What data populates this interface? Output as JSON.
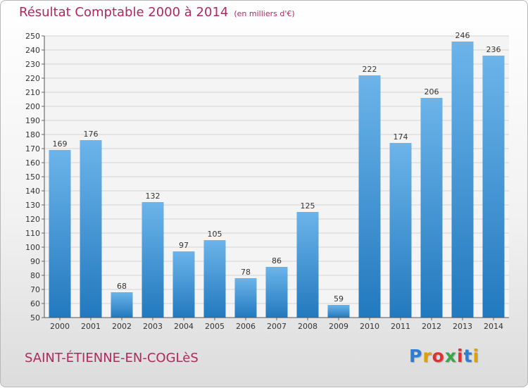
{
  "title": "Résultat Comptable 2000 à 2014",
  "unit_note": "(en milliers d'€)",
  "place": "SAINT-ÉTIENNE-EN-COGLèS",
  "logo": {
    "letters": [
      "P",
      "r",
      "o",
      "x",
      "i",
      "t",
      "i"
    ],
    "colors": [
      "#2a7fd4",
      "#e0a000",
      "#e03030",
      "#3aa64a",
      "#e03030",
      "#2a7fd4",
      "#e0a000"
    ]
  },
  "colors": {
    "bar_light": "#6cb4ea",
    "bar_dark": "#2279be",
    "title": "#b0285e",
    "grid": "#d4d4d4"
  },
  "chart_data": {
    "type": "bar",
    "categories": [
      "2000",
      "2001",
      "2002",
      "2003",
      "2004",
      "2005",
      "2006",
      "2007",
      "2008",
      "2009",
      "2010",
      "2011",
      "2012",
      "2013",
      "2014"
    ],
    "values": [
      169,
      176,
      68,
      132,
      97,
      105,
      78,
      86,
      125,
      59,
      222,
      174,
      206,
      246,
      236
    ],
    "ylim": [
      50,
      250
    ],
    "ytick_step": 10,
    "grid": true
  }
}
